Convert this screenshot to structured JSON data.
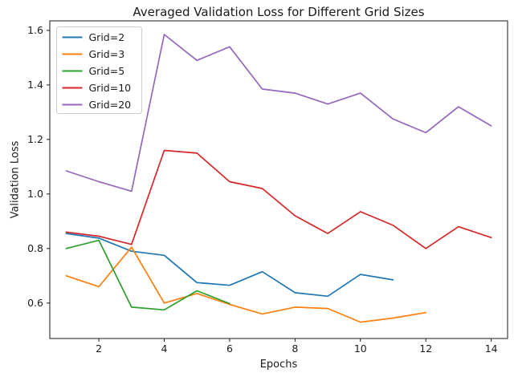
{
  "chart_data": {
    "type": "line",
    "title": "Averaged Validation Loss for Different Grid Sizes",
    "xlabel": "Epochs",
    "ylabel": "Validation Loss",
    "x_ticks": [
      2,
      4,
      6,
      8,
      10,
      12,
      14
    ],
    "y_ticks": [
      0.6,
      0.8,
      1.0,
      1.2,
      1.4,
      1.6
    ],
    "xlim": [
      0.5,
      14.5
    ],
    "ylim": [
      0.47,
      1.635
    ],
    "grid": false,
    "legend_position": "upper left",
    "text_color": "#1a1a1a",
    "spine_color": "#1a1a1a",
    "legend_border_color": "#cccccc",
    "series": [
      {
        "name": "Grid=2",
        "color": "#1f77b4",
        "x": [
          1,
          2,
          3,
          4,
          5,
          6,
          7,
          8,
          9,
          10,
          11
        ],
        "y": [
          0.855,
          0.838,
          0.79,
          0.775,
          0.675,
          0.665,
          0.715,
          0.638,
          0.625,
          0.705,
          0.685
        ]
      },
      {
        "name": "Grid=3",
        "color": "#ff7f0e",
        "x": [
          1,
          2,
          3,
          4,
          5,
          6,
          7,
          8,
          9,
          10,
          11,
          12
        ],
        "y": [
          0.7,
          0.66,
          0.805,
          0.6,
          0.635,
          0.595,
          0.56,
          0.585,
          0.58,
          0.53,
          0.545,
          0.565
        ]
      },
      {
        "name": "Grid=5",
        "color": "#2ca02c",
        "x": [
          1,
          2,
          3,
          4,
          5,
          6
        ],
        "y": [
          0.8,
          0.83,
          0.585,
          0.575,
          0.645,
          0.598
        ]
      },
      {
        "name": "Grid=10",
        "color": "#d62728",
        "x": [
          1,
          2,
          3,
          4,
          5,
          6,
          7,
          8,
          9,
          10,
          11,
          12,
          13,
          14
        ],
        "y": [
          0.86,
          0.845,
          0.815,
          1.16,
          1.15,
          1.045,
          1.02,
          0.92,
          0.855,
          0.935,
          0.885,
          0.8,
          0.88,
          0.84
        ]
      },
      {
        "name": "Grid=20",
        "color": "#9467bd",
        "x": [
          1,
          2,
          3,
          4,
          5,
          6,
          7,
          8,
          9,
          10,
          11,
          12,
          13,
          14
        ],
        "y": [
          1.085,
          1.045,
          1.01,
          1.585,
          1.49,
          1.54,
          1.385,
          1.37,
          1.33,
          1.37,
          1.275,
          1.225,
          1.32,
          1.25
        ]
      }
    ]
  }
}
